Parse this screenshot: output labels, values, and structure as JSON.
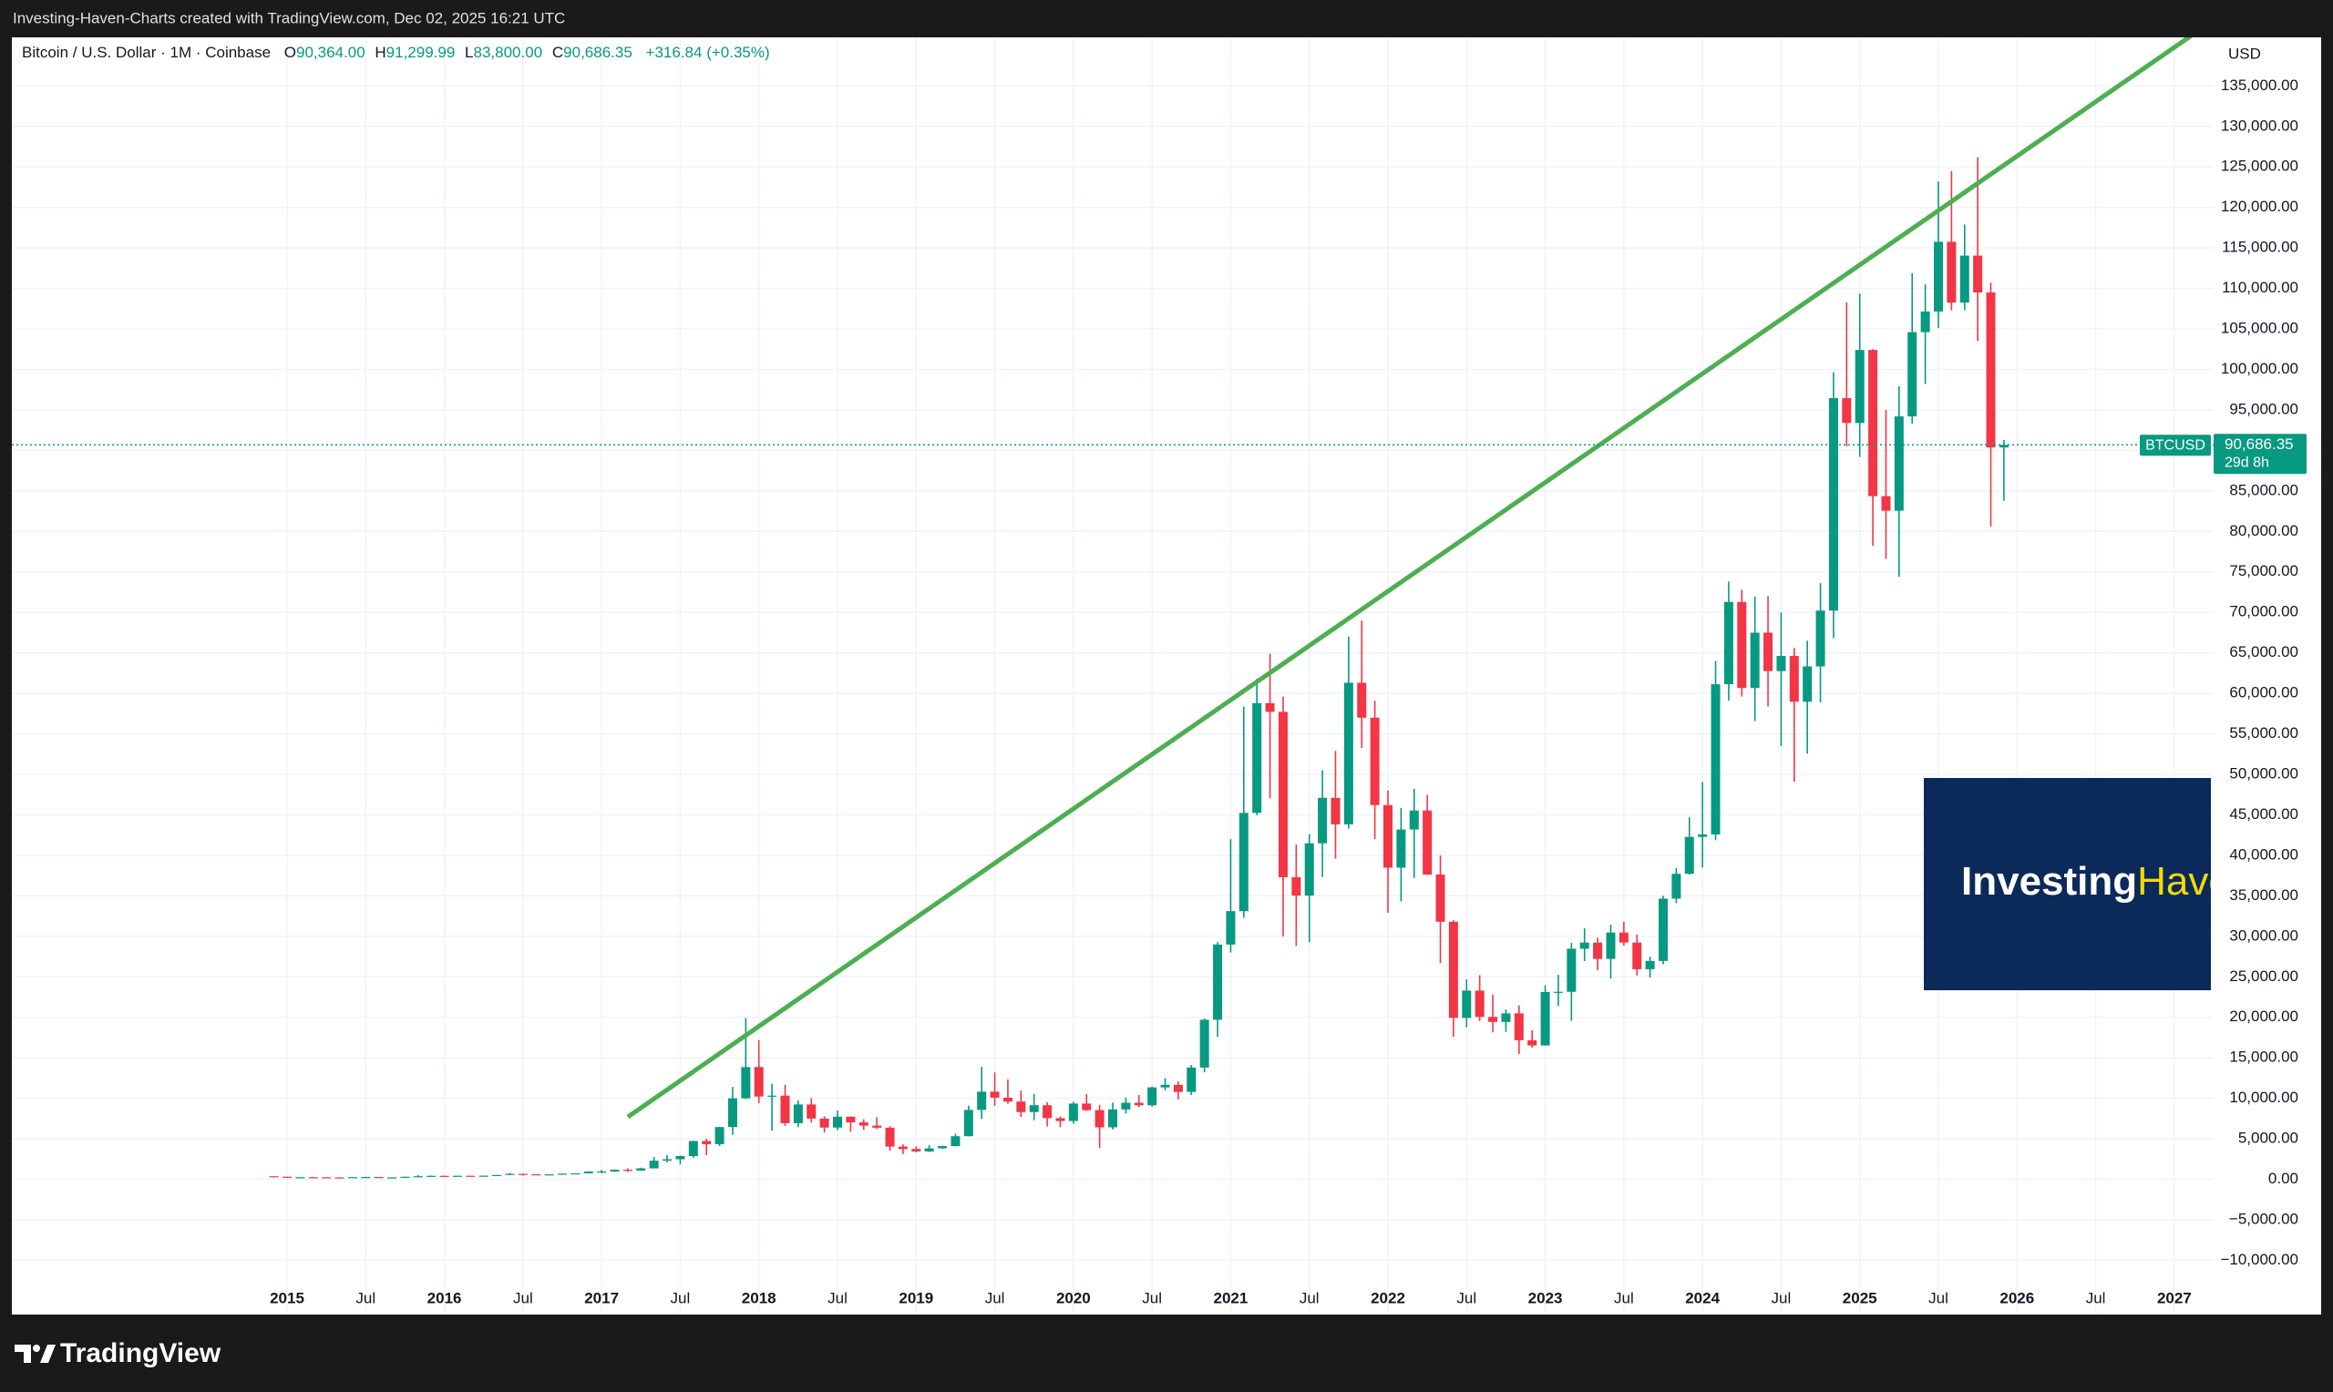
{
  "header": {
    "caption": "Investing-Haven-Charts created with TradingView.com, Dec 02, 2025 16:21 UTC"
  },
  "chart_data": {
    "type": "candlestick",
    "legend": {
      "symbol": "Bitcoin / U.S. Dollar · 1M · Coinbase",
      "open_label": "O",
      "open": "90,364.00",
      "high_label": "H",
      "high": "91,299.99",
      "low_label": "L",
      "low": "83,800.00",
      "close_label": "C",
      "close": "90,686.35",
      "change": "+316.84 (+0.35%)"
    },
    "currency": "USD",
    "up_color": "#089981",
    "down_color": "#f23645",
    "grid": true,
    "x": [
      "2014-12",
      "2015-01",
      "2015-02",
      "2015-03",
      "2015-04",
      "2015-05",
      "2015-06",
      "2015-07",
      "2015-08",
      "2015-09",
      "2015-10",
      "2015-11",
      "2015-12",
      "2016-01",
      "2016-02",
      "2016-03",
      "2016-04",
      "2016-05",
      "2016-06",
      "2016-07",
      "2016-08",
      "2016-09",
      "2016-10",
      "2016-11",
      "2016-12",
      "2017-01",
      "2017-02",
      "2017-03",
      "2017-04",
      "2017-05",
      "2017-06",
      "2017-07",
      "2017-08",
      "2017-09",
      "2017-10",
      "2017-11",
      "2017-12",
      "2018-01",
      "2018-02",
      "2018-03",
      "2018-04",
      "2018-05",
      "2018-06",
      "2018-07",
      "2018-08",
      "2018-09",
      "2018-10",
      "2018-11",
      "2018-12",
      "2019-01",
      "2019-02",
      "2019-03",
      "2019-04",
      "2019-05",
      "2019-06",
      "2019-07",
      "2019-08",
      "2019-09",
      "2019-10",
      "2019-11",
      "2019-12",
      "2020-01",
      "2020-02",
      "2020-03",
      "2020-04",
      "2020-05",
      "2020-06",
      "2020-07",
      "2020-08",
      "2020-09",
      "2020-10",
      "2020-11",
      "2020-12",
      "2021-01",
      "2021-02",
      "2021-03",
      "2021-04",
      "2021-05",
      "2021-06",
      "2021-07",
      "2021-08",
      "2021-09",
      "2021-10",
      "2021-11",
      "2021-12",
      "2022-01",
      "2022-02",
      "2022-03",
      "2022-04",
      "2022-05",
      "2022-06",
      "2022-07",
      "2022-08",
      "2022-09",
      "2022-10",
      "2022-11",
      "2022-12",
      "2023-01",
      "2023-02",
      "2023-03",
      "2023-04",
      "2023-05",
      "2023-06",
      "2023-07",
      "2023-08",
      "2023-09",
      "2023-10",
      "2023-11",
      "2023-12",
      "2024-01",
      "2024-02",
      "2024-03",
      "2024-04",
      "2024-05",
      "2024-06",
      "2024-07",
      "2024-08",
      "2024-09",
      "2024-10",
      "2024-11",
      "2024-12",
      "2025-01",
      "2025-02",
      "2025-03",
      "2025-04",
      "2025-05",
      "2025-06",
      "2025-07",
      "2025-08",
      "2025-09",
      "2025-10",
      "2025-11",
      "2025-12"
    ],
    "open": [
      378,
      320,
      217,
      254,
      244,
      236,
      230,
      263,
      284,
      230,
      236,
      312,
      377,
      430,
      369,
      437,
      416,
      448,
      531,
      673,
      624,
      574,
      609,
      700,
      742,
      964,
      968,
      1190,
      1080,
      1350,
      2300,
      2480,
      2870,
      4730,
      4340,
      6450,
      10000,
      13860,
      10220,
      10330,
      6930,
      9240,
      7500,
      6390,
      7730,
      7030,
      6630,
      6370,
      4040,
      3740,
      3440,
      3820,
      4100,
      5320,
      8570,
      10820,
      10080,
      9600,
      8300,
      9150,
      7550,
      7200,
      9350,
      8540,
      6420,
      8630,
      9450,
      9140,
      11350,
      11660,
      10790,
      13800,
      19700,
      28990,
      33110,
      45240,
      58790,
      57720,
      37300,
      35040,
      41490,
      47100,
      43830,
      61310,
      57000,
      46210,
      38480,
      43190,
      45540,
      37630,
      31800,
      19930,
      23300,
      20050,
      19430,
      20490,
      17170,
      16530,
      23130,
      23150,
      28470,
      29230,
      27210,
      30470,
      29230,
      25940,
      26960,
      34660,
      37720,
      42280,
      42580,
      61130,
      71290,
      60660,
      67490,
      62750,
      64620,
      58970,
      63330,
      70220,
      96450,
      93390,
      102400,
      84350,
      82550,
      94200,
      104600,
      107150,
      115760,
      108250,
      114050,
      109500,
      90364
    ],
    "high": [
      384,
      320,
      265,
      300,
      261,
      248,
      268,
      315,
      286,
      245,
      335,
      495,
      466,
      463,
      443,
      440,
      469,
      551,
      778,
      704,
      627,
      622,
      712,
      751,
      979,
      1160,
      1210,
      1350,
      1440,
      2760,
      3000,
      2940,
      4750,
      5000,
      6470,
      11400,
      19890,
      17180,
      11790,
      11660,
      9750,
      10020,
      7770,
      8490,
      7760,
      7410,
      7670,
      6560,
      4310,
      4070,
      4210,
      4150,
      5640,
      9100,
      13880,
      13200,
      12330,
      10960,
      10540,
      9510,
      7750,
      9580,
      10520,
      9190,
      9470,
      10080,
      10390,
      11450,
      12480,
      12090,
      14110,
      19850,
      29300,
      41990,
      58370,
      61800,
      64900,
      59600,
      41330,
      42600,
      50500,
      52900,
      67000,
      69000,
      59100,
      48000,
      45860,
      48230,
      47460,
      40000,
      31990,
      24670,
      25200,
      22800,
      20990,
      21470,
      18390,
      23950,
      25250,
      29190,
      31000,
      29830,
      31430,
      31800,
      30200,
      27480,
      35000,
      38440,
      44700,
      49050,
      64000,
      73800,
      72800,
      71950,
      71980,
      70000,
      65600,
      66500,
      73600,
      99650,
      108300,
      109350,
      102500,
      95000,
      97900,
      111900,
      110500,
      123200,
      124500,
      117900,
      126200,
      110700,
      91299.99
    ],
    "low": [
      310,
      170,
      212,
      236,
      214,
      226,
      218,
      253,
      199,
      225,
      235,
      305,
      345,
      350,
      366,
      395,
      412,
      440,
      525,
      470,
      540,
      570,
      604,
      684,
      740,
      750,
      915,
      890,
      1060,
      1350,
      2100,
      1830,
      2670,
      2980,
      4110,
      5500,
      9900,
      9400,
      6000,
      6600,
      6430,
      7030,
      5780,
      6070,
      5880,
      6100,
      6200,
      3520,
      3120,
      3350,
      3370,
      3780,
      4060,
      5300,
      7450,
      9070,
      9320,
      7710,
      7300,
      6520,
      6430,
      6870,
      8450,
      3860,
      6150,
      8110,
      8910,
      8970,
      10970,
      9870,
      10400,
      13210,
      17580,
      28000,
      32300,
      44960,
      47040,
      30000,
      28800,
      29280,
      37330,
      39600,
      43300,
      53250,
      42000,
      32900,
      34300,
      37200,
      37580,
      26700,
      17600,
      18780,
      19540,
      18150,
      18200,
      15480,
      16260,
      16500,
      21400,
      19570,
      26940,
      25800,
      24800,
      28860,
      25170,
      24900,
      26550,
      34100,
      37620,
      38500,
      41880,
      59100,
      59600,
      56550,
      58400,
      53500,
      49100,
      52550,
      58900,
      66800,
      90500,
      89200,
      78200,
      76600,
      74400,
      93300,
      98200,
      105100,
      107300,
      107300,
      103500,
      80600,
      83800
    ],
    "close": [
      320,
      217,
      254,
      244,
      236,
      230,
      263,
      284,
      230,
      236,
      312,
      377,
      430,
      369,
      437,
      416,
      448,
      531,
      673,
      624,
      574,
      609,
      700,
      742,
      964,
      968,
      1190,
      1080,
      1350,
      2300,
      2480,
      2870,
      4730,
      4340,
      6450,
      10000,
      13860,
      10220,
      10330,
      6930,
      9240,
      7500,
      6390,
      7730,
      7030,
      6630,
      6370,
      4040,
      3740,
      3440,
      3820,
      4100,
      5320,
      8570,
      10820,
      10080,
      9600,
      8300,
      9150,
      7550,
      7200,
      9350,
      8540,
      6420,
      8630,
      9450,
      9140,
      11350,
      11660,
      10790,
      13800,
      19700,
      28990,
      33110,
      45240,
      58790,
      57720,
      37300,
      35040,
      41490,
      47100,
      43830,
      61310,
      57000,
      46210,
      38480,
      43190,
      45540,
      37630,
      31800,
      19930,
      23300,
      20050,
      19430,
      20490,
      17170,
      16530,
      23130,
      23150,
      28470,
      29230,
      27210,
      30470,
      29230,
      25940,
      26960,
      34660,
      37720,
      42280,
      42580,
      61130,
      71290,
      60660,
      67490,
      62750,
      64620,
      58970,
      63330,
      70220,
      96450,
      93390,
      102400,
      84350,
      82550,
      94200,
      104600,
      107150,
      115760,
      108250,
      114050,
      109500,
      90364,
      90686.35
    ],
    "xlim": [
      "2013-04",
      "2027-04"
    ],
    "ylim": [
      -16700,
      141000
    ],
    "xticks": [
      {
        "value": "2015-01",
        "label": "2015"
      },
      {
        "value": "2015-07",
        "label": "Jul"
      },
      {
        "value": "2016-01",
        "label": "2016"
      },
      {
        "value": "2016-07",
        "label": "Jul"
      },
      {
        "value": "2017-01",
        "label": "2017"
      },
      {
        "value": "2017-07",
        "label": "Jul"
      },
      {
        "value": "2018-01",
        "label": "2018"
      },
      {
        "value": "2018-07",
        "label": "Jul"
      },
      {
        "value": "2019-01",
        "label": "2019"
      },
      {
        "value": "2019-07",
        "label": "Jul"
      },
      {
        "value": "2020-01",
        "label": "2020"
      },
      {
        "value": "2020-07",
        "label": "Jul"
      },
      {
        "value": "2021-01",
        "label": "2021"
      },
      {
        "value": "2021-07",
        "label": "Jul"
      },
      {
        "value": "2022-01",
        "label": "2022"
      },
      {
        "value": "2022-07",
        "label": "Jul"
      },
      {
        "value": "2023-01",
        "label": "2023"
      },
      {
        "value": "2023-07",
        "label": "Jul"
      },
      {
        "value": "2024-01",
        "label": "2024"
      },
      {
        "value": "2024-07",
        "label": "Jul"
      },
      {
        "value": "2025-01",
        "label": "2025"
      },
      {
        "value": "2025-07",
        "label": "Jul"
      },
      {
        "value": "2026-01",
        "label": "2026"
      },
      {
        "value": "2026-07",
        "label": "Jul"
      },
      {
        "value": "2027-01",
        "label": "2027"
      }
    ],
    "yticks": [
      {
        "value": -10000,
        "label": "−10,000.00"
      },
      {
        "value": -5000,
        "label": "−5,000.00"
      },
      {
        "value": 0,
        "label": "0.00"
      },
      {
        "value": 5000,
        "label": "5,000.00"
      },
      {
        "value": 10000,
        "label": "10,000.00"
      },
      {
        "value": 15000,
        "label": "15,000.00"
      },
      {
        "value": 20000,
        "label": "20,000.00"
      },
      {
        "value": 25000,
        "label": "25,000.00"
      },
      {
        "value": 30000,
        "label": "30,000.00"
      },
      {
        "value": 35000,
        "label": "35,000.00"
      },
      {
        "value": 40000,
        "label": "40,000.00"
      },
      {
        "value": 45000,
        "label": "45,000.00"
      },
      {
        "value": 50000,
        "label": "50,000.00"
      },
      {
        "value": 55000,
        "label": "55,000.00"
      },
      {
        "value": 60000,
        "label": "60,000.00"
      },
      {
        "value": 65000,
        "label": "65,000.00"
      },
      {
        "value": 70000,
        "label": "70,000.00"
      },
      {
        "value": 75000,
        "label": "75,000.00"
      },
      {
        "value": 80000,
        "label": "80,000.00"
      },
      {
        "value": 85000,
        "label": "85,000.00"
      },
      {
        "value": 90000,
        "label": "90,000.00"
      },
      {
        "value": 95000,
        "label": "95,000.00"
      },
      {
        "value": 100000,
        "label": "100,000.00"
      },
      {
        "value": 105000,
        "label": "105,000.00"
      },
      {
        "value": 110000,
        "label": "110,000.00"
      },
      {
        "value": 115000,
        "label": "115,000.00"
      },
      {
        "value": 120000,
        "label": "120,000.00"
      },
      {
        "value": 125000,
        "label": "125,000.00"
      },
      {
        "value": 130000,
        "label": "130,000.00"
      },
      {
        "value": 135000,
        "label": "135,000.00"
      }
    ],
    "last_price": {
      "symbol": "BTCUSD",
      "value": 90686.35,
      "label": "90,686.35",
      "countdown": "29d 8h"
    },
    "trendline": {
      "x": [
        "2017-03",
        "2027-03"
      ],
      "values": [
        7700,
        142000
      ],
      "color": "#4caf50"
    },
    "watermark": {
      "first": "Investing",
      "second": "Haven"
    }
  },
  "footer": {
    "brand": "TradingView"
  }
}
